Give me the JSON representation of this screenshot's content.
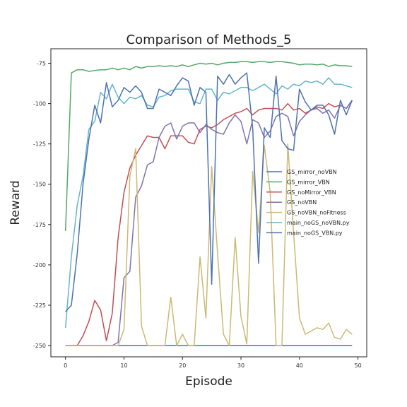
{
  "chart_data": {
    "type": "line",
    "title": "Comparison of Methods_5",
    "xlabel": "Episode",
    "ylabel": "Reward",
    "xlim": [
      -2.5,
      51.5
    ],
    "ylim": [
      -257,
      -66
    ],
    "xticks": [
      0,
      10,
      20,
      30,
      40,
      50
    ],
    "yticks": [
      -250,
      -225,
      -200,
      -175,
      -150,
      -125,
      -100,
      -75
    ],
    "grid": false,
    "legend_position": "center-right",
    "x": [
      0,
      1,
      2,
      3,
      4,
      5,
      6,
      7,
      8,
      9,
      10,
      11,
      12,
      13,
      14,
      15,
      16,
      17,
      18,
      19,
      20,
      21,
      22,
      23,
      24,
      25,
      26,
      27,
      28,
      29,
      30,
      31,
      32,
      33,
      34,
      35,
      36,
      37,
      38,
      39,
      40,
      41,
      42,
      43,
      44,
      45,
      46,
      47,
      48,
      49
    ],
    "series": [
      {
        "name": "GS_mirror_noVBN",
        "color": "#4c72b0",
        "values": [
          -250,
          -250,
          -250,
          -250,
          -250,
          -250,
          -250,
          -250,
          -250,
          -250,
          -250,
          -250,
          -250,
          -250,
          -250,
          -250,
          -250,
          -250,
          -250,
          -250,
          -250,
          -250,
          -250,
          -250,
          -250,
          -250,
          -250,
          -250,
          -250,
          -250,
          -250,
          -250,
          -250,
          -250,
          -250,
          -250,
          -250,
          -250,
          -250,
          -250,
          -250,
          -250,
          -250,
          -250,
          -250,
          -250,
          -250,
          -250,
          -250,
          -250
        ]
      },
      {
        "name": "GS_mirror_VBN",
        "color": "#55a868",
        "values": [
          -179,
          -81,
          -79,
          -79,
          -80,
          -79.5,
          -79,
          -79,
          -78,
          -79,
          -78,
          -79,
          -77,
          -78,
          -77,
          -77,
          -76.5,
          -77,
          -76.5,
          -77,
          -76,
          -77,
          -76,
          -75,
          -75.5,
          -75,
          -76,
          -75,
          -74.5,
          -74.5,
          -74,
          -74,
          -74.5,
          -74,
          -74,
          -74.5,
          -74,
          -74,
          -74.5,
          -75,
          -76,
          -75.5,
          -75.5,
          -76,
          -75.5,
          -77,
          -76,
          -76.5,
          -76.5,
          -77
        ]
      },
      {
        "name": "GS_noMirror_VBN",
        "color": "#c44e52",
        "values": [
          -250,
          -250,
          -250,
          -244,
          -235,
          -222,
          -228,
          -247,
          -230,
          -183,
          -155,
          -140,
          -132,
          -126,
          -120,
          -121,
          -121,
          -128,
          -120,
          -120,
          -120,
          -124,
          -125,
          -116,
          -114,
          -115,
          -113,
          -110,
          -108,
          -106,
          -105,
          -103,
          -107,
          -104,
          -103,
          -103,
          -103,
          -104,
          -100,
          -104,
          -103,
          -106,
          -104,
          -102,
          -103,
          -100,
          -102,
          -101,
          -103,
          -98
        ]
      },
      {
        "name": "GS_noVBN",
        "color": "#8172b2",
        "values": [
          -250,
          -250,
          -250,
          -250,
          -250,
          -250,
          -250,
          -250,
          -250,
          -248,
          -208,
          -204,
          -158,
          -151,
          -138,
          -136,
          -121,
          -114,
          -112,
          -122,
          -114,
          -112,
          -112,
          -118,
          -113,
          -116,
          -118,
          -119,
          -112,
          -107,
          -111,
          -125,
          -110,
          -112,
          -121,
          -117,
          -108,
          -106,
          -108,
          -120,
          -111,
          -107,
          -104,
          -103,
          -106,
          -104,
          -109,
          -101,
          -103,
          -98
        ]
      },
      {
        "name": "GS_noVBN_noFitness",
        "color": "#ccb974",
        "values": [
          -250,
          -250,
          -250,
          -250,
          -250,
          -250,
          -250,
          -250,
          -250,
          -250,
          -240,
          -145,
          -128,
          -238,
          -250,
          -250,
          -250,
          -250,
          -220,
          -250,
          -243,
          -250,
          -250,
          -195,
          -233,
          -139,
          -193,
          -243,
          -250,
          -183,
          -232,
          -249,
          -142,
          -180,
          -126,
          -155,
          -250,
          -250,
          -125,
          -180,
          -233,
          -243,
          -241,
          -239,
          -240,
          -236,
          -245,
          -246,
          -240,
          -243
        ]
      },
      {
        "name": "main_noGS_noVBN.py",
        "color": "#64b5cd",
        "values": [
          -239,
          -195,
          -163,
          -145,
          -116,
          -111,
          -93,
          -97,
          -88,
          -96,
          -100,
          -96,
          -97,
          -95,
          -101,
          -102,
          -96,
          -95,
          -92,
          -91,
          -91,
          -91,
          -99,
          -100,
          -91,
          -91,
          -98,
          -93,
          -94,
          -92,
          -90,
          -90,
          -92,
          -90,
          -88,
          -91,
          -94,
          -89,
          -91,
          -88,
          -89,
          -86,
          -87,
          -86,
          -88,
          -84,
          -88,
          -88,
          -89,
          -90
        ]
      },
      {
        "name": "main_noGS_VBN.py",
        "color": "#4c72b0",
        "values": [
          -229,
          -225,
          -193,
          -150,
          -122,
          -101,
          -112,
          -87,
          -102,
          -98,
          -90,
          -93,
          -89,
          -93,
          -103,
          -103,
          -91,
          -93,
          -95,
          -89,
          -84,
          -86,
          -101,
          -90,
          -93,
          -212,
          -83,
          -88,
          -82,
          -88,
          -84,
          -81,
          -115,
          -199,
          -115,
          -121,
          -83,
          -123,
          -128,
          -129,
          -91,
          -99,
          -104,
          -101,
          -101,
          -107,
          -119,
          -98,
          -107,
          -98
        ]
      }
    ]
  }
}
